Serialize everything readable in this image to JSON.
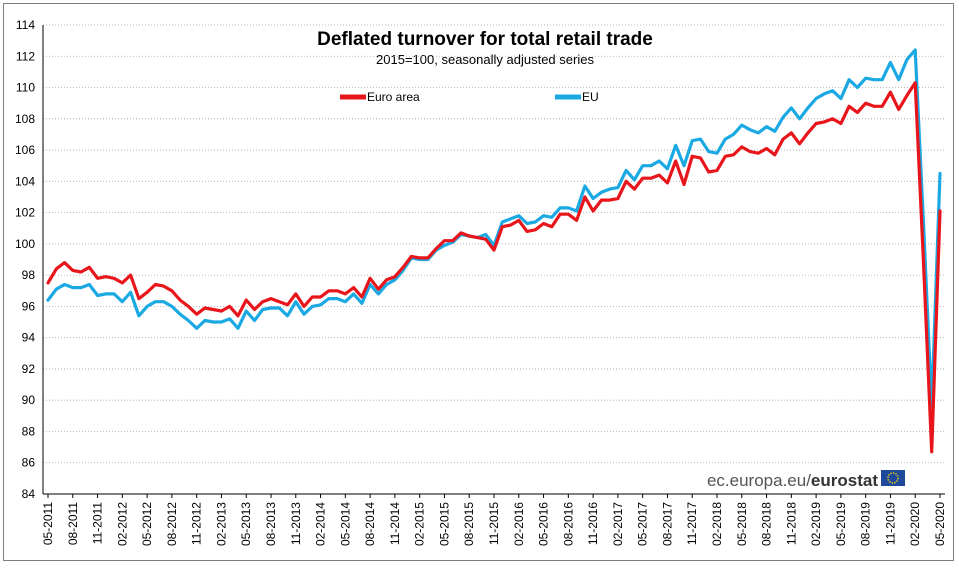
{
  "chart_data": {
    "type": "line",
    "title": "Deflated turnover for total retail trade",
    "subtitle": "2015=100,  seasonally adjusted series",
    "ylim": [
      84,
      114
    ],
    "y_ticks": [
      84,
      86,
      88,
      90,
      92,
      94,
      96,
      98,
      100,
      102,
      104,
      106,
      108,
      110,
      112,
      114
    ],
    "x_tick_labels": [
      "05-2011",
      "08-2011",
      "11-2011",
      "02-2012",
      "05-2012",
      "08-2012",
      "11-2012",
      "02-2013",
      "05-2013",
      "08-2013",
      "11-2013",
      "02-2014",
      "05-2014",
      "08-2014",
      "11-2014",
      "02-2015",
      "05-2015",
      "08-2015",
      "11-2015",
      "02-2016",
      "05-2016",
      "08-2016",
      "11-2016",
      "02-2017",
      "05-2017",
      "08-2017",
      "11-2017",
      "02-2018",
      "05-2018",
      "08-2018",
      "11-2018",
      "02-2019",
      "05-2019",
      "08-2019",
      "11-2019",
      "02-2020",
      "05-2020"
    ],
    "x_start": "05-2011",
    "x_end": "05-2020",
    "legend_position": "top",
    "grid": "horizontal",
    "series": [
      {
        "name": "Euro area",
        "color": "#e8151b",
        "values": [
          97.5,
          98.4,
          98.8,
          98.3,
          98.2,
          98.5,
          97.8,
          97.9,
          97.8,
          97.5,
          98.0,
          96.5,
          96.9,
          97.4,
          97.3,
          97.0,
          96.4,
          96.0,
          95.5,
          95.9,
          95.8,
          95.7,
          96.0,
          95.4,
          96.4,
          95.8,
          96.3,
          96.5,
          96.3,
          96.1,
          96.8,
          96.0,
          96.6,
          96.6,
          97.0,
          97.0,
          96.8,
          97.2,
          96.6,
          97.8,
          97.1,
          97.7,
          97.9,
          98.5,
          99.2,
          99.1,
          99.1,
          99.7,
          100.2,
          100.2,
          100.7,
          100.5,
          100.4,
          100.3,
          99.6,
          101.1,
          101.2,
          101.5,
          100.8,
          100.9,
          101.3,
          101.1,
          101.9,
          101.9,
          101.5,
          103.0,
          102.1,
          102.8,
          102.8,
          102.9,
          104.0,
          103.5,
          104.2,
          104.2,
          104.4,
          103.9,
          105.3,
          103.8,
          105.6,
          105.5,
          104.6,
          104.7,
          105.6,
          105.7,
          106.2,
          105.9,
          105.8,
          106.1,
          105.7,
          106.7,
          107.1,
          106.4,
          107.1,
          107.7,
          107.8,
          108.0,
          107.7,
          108.8,
          108.4,
          109.0,
          108.8,
          108.8,
          109.7,
          108.6,
          109.5,
          110.3,
          98.8,
          86.7,
          102.1
        ]
      },
      {
        "name": "EU",
        "color": "#1ba9e3",
        "values": [
          96.4,
          97.1,
          97.4,
          97.2,
          97.2,
          97.4,
          96.7,
          96.8,
          96.8,
          96.3,
          96.9,
          95.4,
          96.0,
          96.3,
          96.3,
          96.0,
          95.5,
          95.1,
          94.6,
          95.1,
          95.0,
          95.0,
          95.2,
          94.6,
          95.7,
          95.1,
          95.8,
          95.9,
          95.9,
          95.4,
          96.3,
          95.5,
          96.0,
          96.1,
          96.5,
          96.5,
          96.3,
          96.8,
          96.2,
          97.4,
          96.8,
          97.4,
          97.7,
          98.3,
          99.1,
          99.0,
          99.0,
          99.6,
          99.9,
          100.1,
          100.6,
          100.5,
          100.4,
          100.6,
          99.9,
          101.4,
          101.6,
          101.8,
          101.3,
          101.4,
          101.8,
          101.7,
          102.3,
          102.3,
          102.1,
          103.7,
          102.9,
          103.3,
          103.5,
          103.6,
          104.7,
          104.1,
          105.0,
          105.0,
          105.3,
          104.8,
          106.3,
          105.0,
          106.6,
          106.7,
          105.9,
          105.8,
          106.7,
          107.0,
          107.6,
          107.3,
          107.1,
          107.5,
          107.2,
          108.1,
          108.7,
          108.0,
          108.7,
          109.3,
          109.6,
          109.8,
          109.3,
          110.5,
          110.0,
          110.6,
          110.5,
          110.5,
          111.6,
          110.5,
          111.8,
          112.4,
          101.3,
          89.6,
          104.5
        ]
      }
    ]
  },
  "credit": {
    "light": "ec.europa.eu/",
    "bold": "eurostat"
  }
}
